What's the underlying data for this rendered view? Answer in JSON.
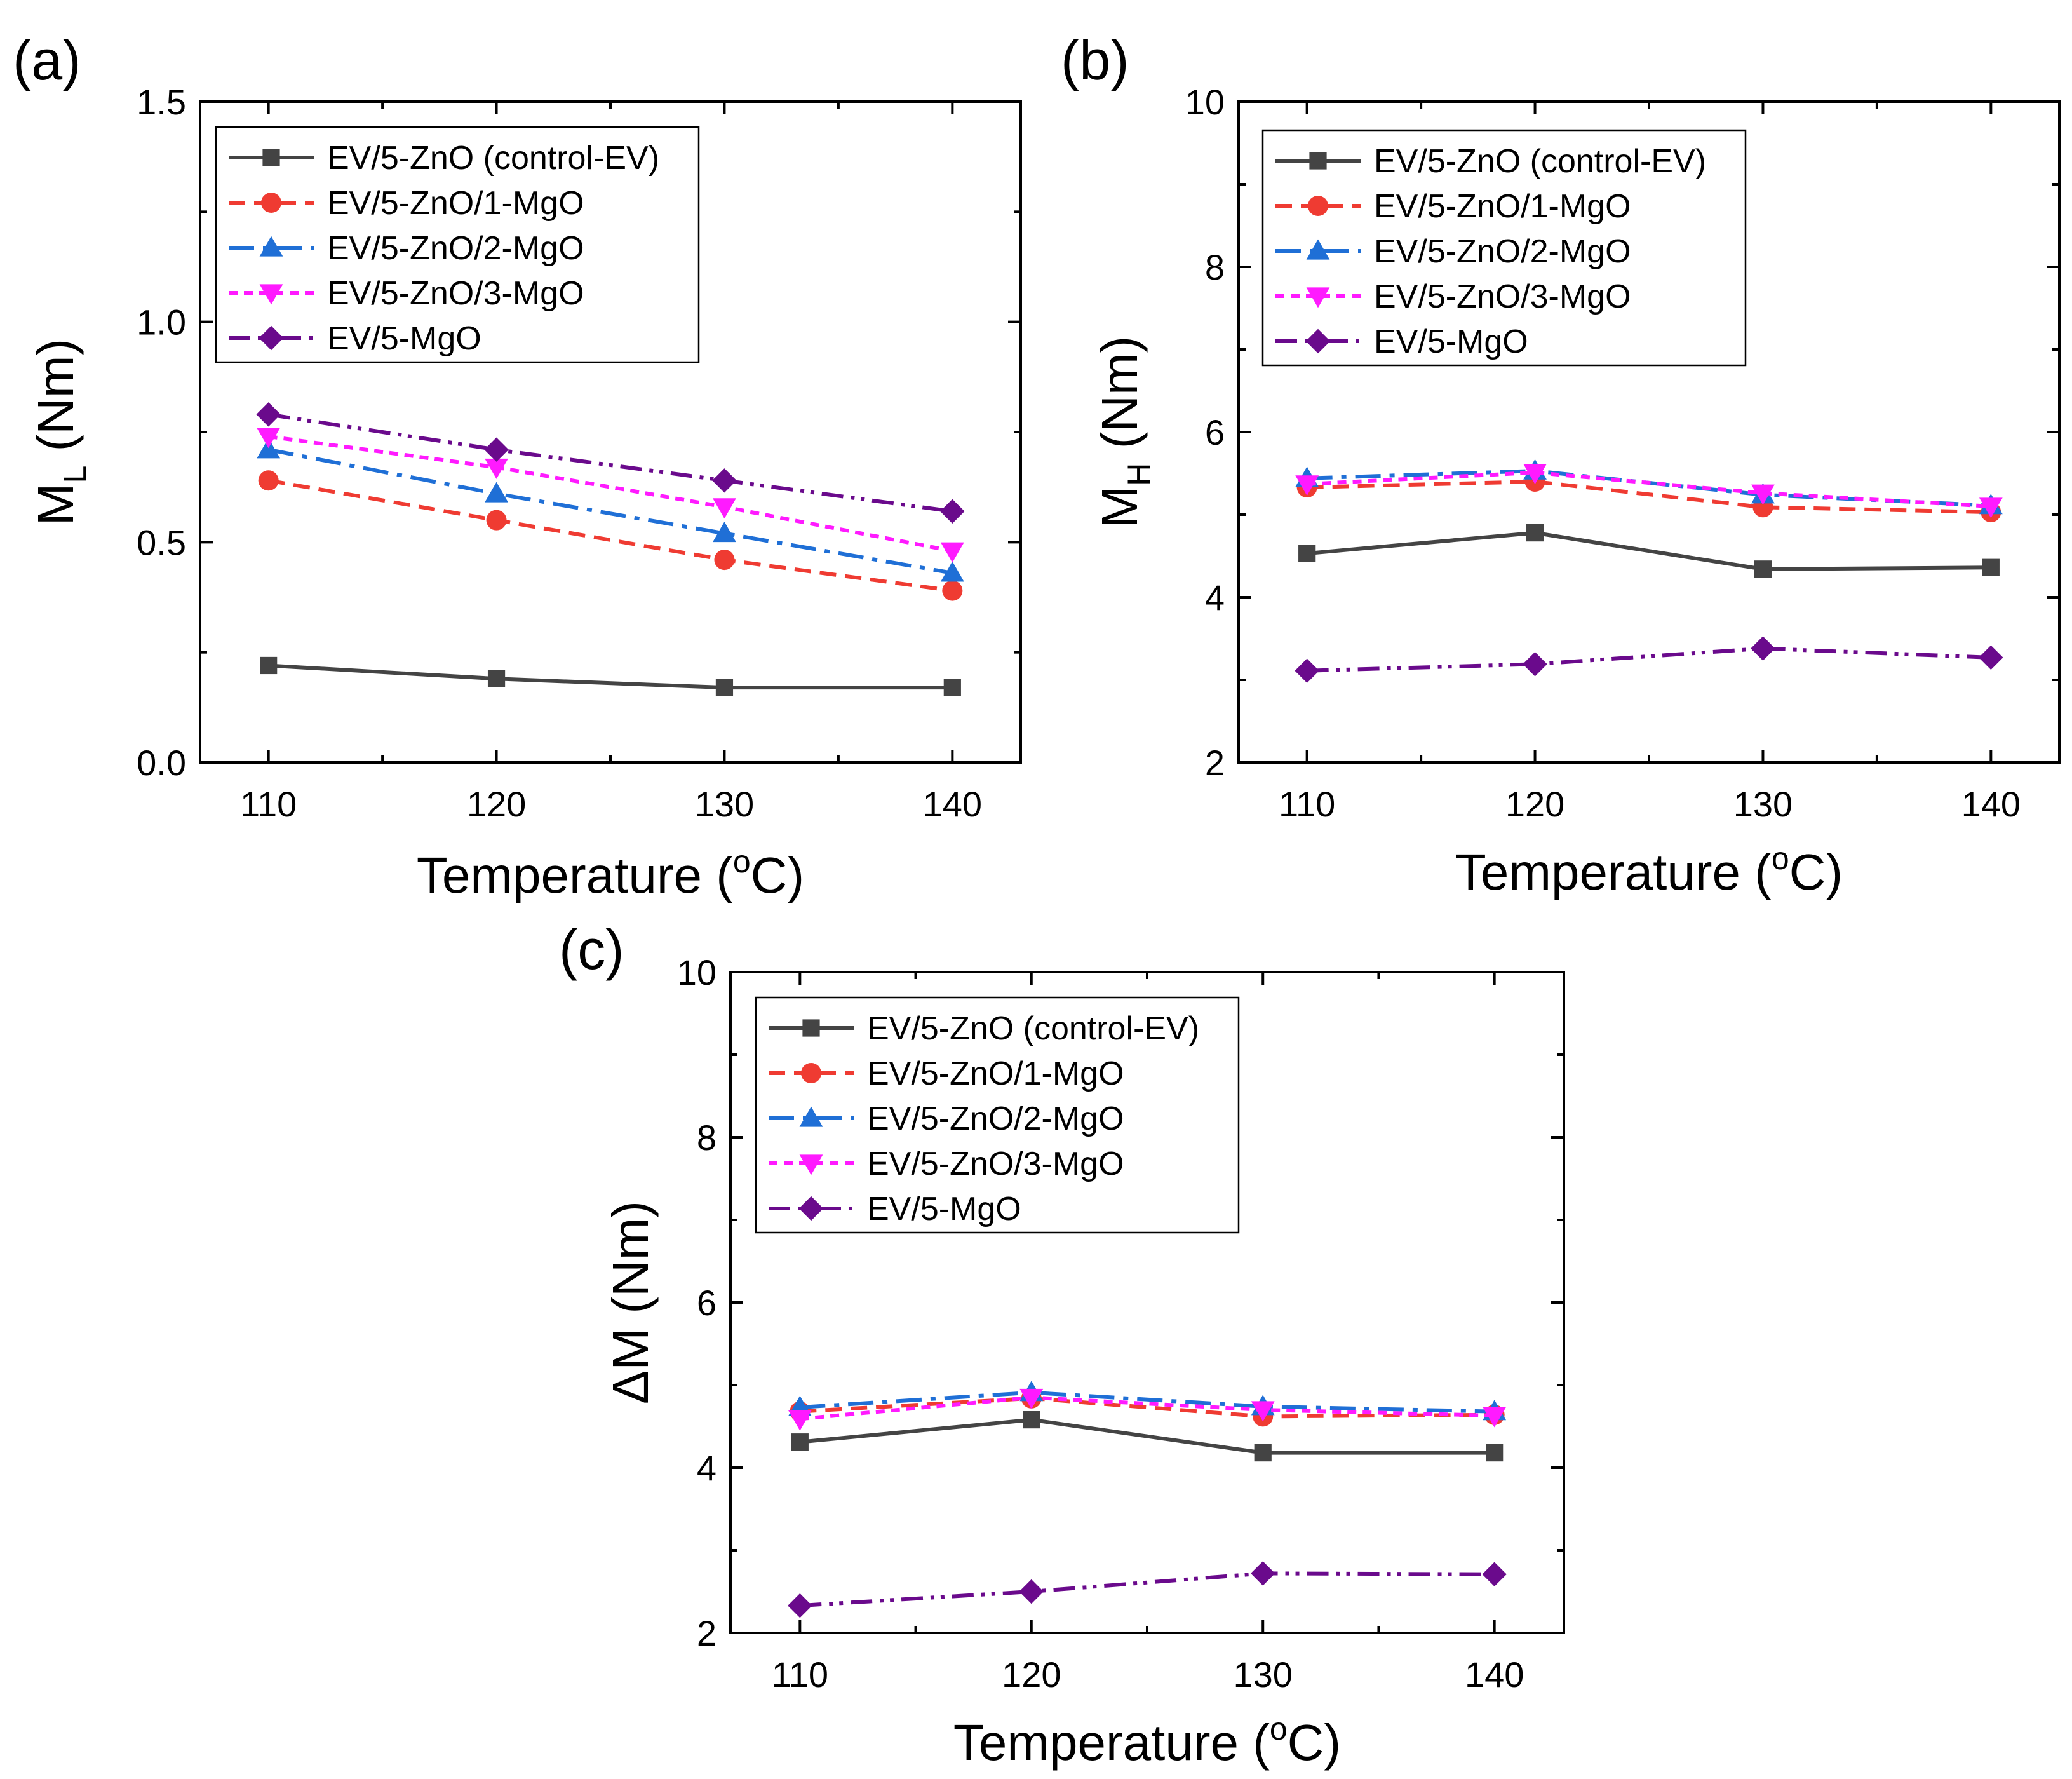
{
  "chart_data": [
    {
      "panel": "(a)",
      "type": "line",
      "ylabel": {
        "main": "M",
        "sub": "L",
        "unit": " (Nm)"
      },
      "xlabel": {
        "main": "Temperature (",
        "sup": "o",
        "unit": "C)"
      },
      "x": [
        110,
        120,
        130,
        140
      ],
      "xticks": [
        "110",
        "120",
        "130",
        "140"
      ],
      "xlim": [
        107,
        143
      ],
      "ylim": [
        0.0,
        1.5
      ],
      "yticks": [
        "0.0",
        "0.5",
        "1.0",
        "1.5"
      ],
      "ytick_values": [
        0.0,
        0.5,
        1.0,
        1.5
      ],
      "series": [
        {
          "name": "EV/5-ZnO (control-EV)",
          "values": [
            0.22,
            0.19,
            0.17,
            0.17
          ]
        },
        {
          "name": "EV/5-ZnO/1-MgO",
          "values": [
            0.64,
            0.55,
            0.46,
            0.39
          ]
        },
        {
          "name": "EV/5-ZnO/2-MgO",
          "values": [
            0.71,
            0.61,
            0.52,
            0.43
          ]
        },
        {
          "name": "EV/5-ZnO/3-MgO",
          "values": [
            0.74,
            0.67,
            0.58,
            0.48
          ]
        },
        {
          "name": "EV/5-MgO",
          "values": [
            0.79,
            0.71,
            0.64,
            0.57
          ]
        }
      ]
    },
    {
      "panel": "(b)",
      "type": "line",
      "ylabel": {
        "main": "M",
        "sub": "H",
        "unit": " (Nm)"
      },
      "xlabel": {
        "main": "Temperature (",
        "sup": "o",
        "unit": "C)"
      },
      "x": [
        110,
        120,
        130,
        140
      ],
      "xticks": [
        "110",
        "120",
        "130",
        "140"
      ],
      "xlim": [
        107,
        143
      ],
      "ylim": [
        2,
        10
      ],
      "yticks": [
        "2",
        "4",
        "6",
        "8",
        "10"
      ],
      "ytick_values": [
        2,
        4,
        6,
        8,
        10
      ],
      "series": [
        {
          "name": "EV/5-ZnO (control-EV)",
          "values": [
            4.53,
            4.78,
            4.34,
            4.36
          ]
        },
        {
          "name": "EV/5-ZnO/1-MgO",
          "values": [
            5.33,
            5.4,
            5.09,
            5.03
          ]
        },
        {
          "name": "EV/5-ZnO/2-MgO",
          "values": [
            5.44,
            5.53,
            5.24,
            5.11
          ]
        },
        {
          "name": "EV/5-ZnO/3-MgO",
          "values": [
            5.37,
            5.51,
            5.26,
            5.1
          ]
        },
        {
          "name": "EV/5-MgO",
          "values": [
            3.11,
            3.19,
            3.38,
            3.27
          ]
        }
      ]
    },
    {
      "panel": "(c)",
      "type": "line",
      "ylabel": {
        "main": "ΔM",
        "sub": "",
        "unit": " (Nm)"
      },
      "xlabel": {
        "main": "Temperature (",
        "sup": "o",
        "unit": "C)"
      },
      "x": [
        110,
        120,
        130,
        140
      ],
      "xticks": [
        "110",
        "120",
        "130",
        "140"
      ],
      "xlim": [
        107,
        143
      ],
      "ylim": [
        2,
        10
      ],
      "yticks": [
        "2",
        "4",
        "6",
        "8",
        "10"
      ],
      "ytick_values": [
        2,
        4,
        6,
        8,
        10
      ],
      "series": [
        {
          "name": "EV/5-ZnO (control-EV)",
          "values": [
            4.31,
            4.58,
            4.18,
            4.18
          ]
        },
        {
          "name": "EV/5-ZnO/1-MgO",
          "values": [
            4.68,
            4.84,
            4.62,
            4.64
          ]
        },
        {
          "name": "EV/5-ZnO/2-MgO",
          "values": [
            4.73,
            4.91,
            4.74,
            4.68
          ]
        },
        {
          "name": "EV/5-ZnO/3-MgO",
          "values": [
            4.59,
            4.85,
            4.7,
            4.63
          ]
        },
        {
          "name": "EV/5-MgO",
          "values": [
            2.33,
            2.5,
            2.72,
            2.71
          ]
        }
      ]
    }
  ],
  "series_styles": [
    {
      "color": "#444444",
      "marker": "square"
    },
    {
      "color": "#ef3b32",
      "marker": "circle"
    },
    {
      "color": "#1f6fd6",
      "marker": "triangle-up"
    },
    {
      "color": "#ff1aff",
      "marker": "triangle-down"
    },
    {
      "color": "#6a0a8c",
      "marker": "diamond"
    }
  ]
}
